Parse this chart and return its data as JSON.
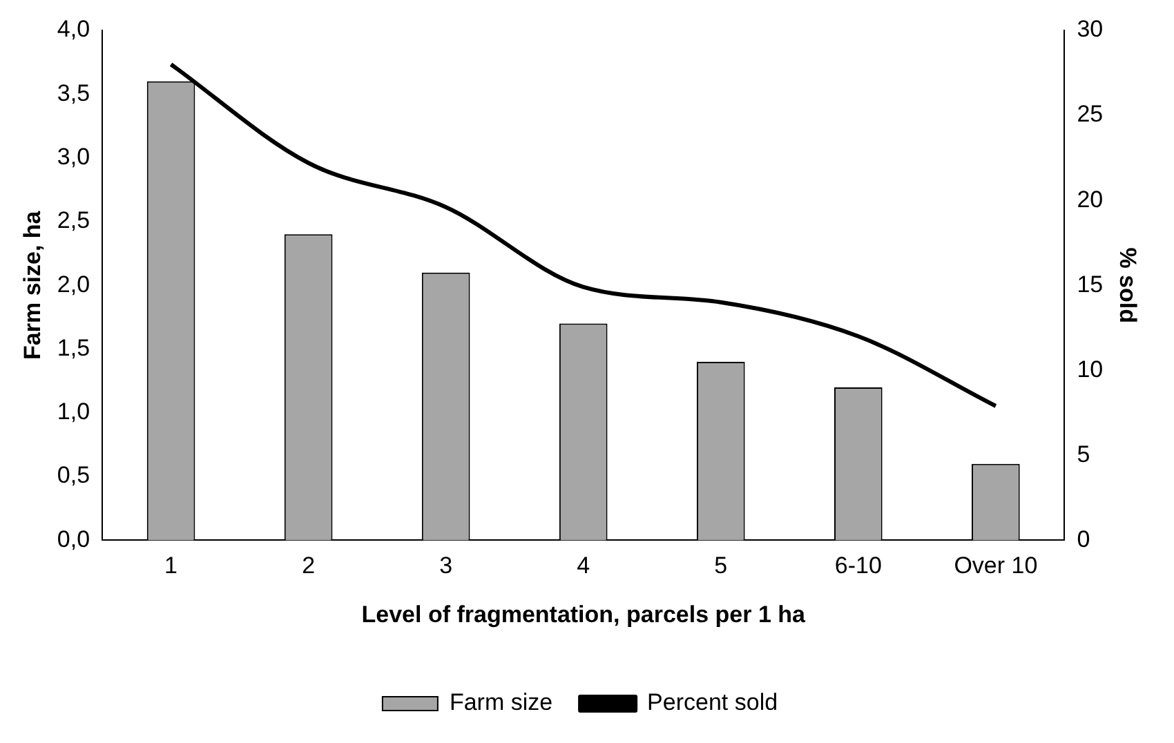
{
  "chart_data": {
    "type": "bar",
    "xlabel": "Level of fragmentation, parcels per 1 ha",
    "ylabel": "Farm size, ha",
    "y2label": "% sold",
    "categories": [
      "1",
      "2",
      "3",
      "4",
      "5",
      "6-10",
      "Over 10"
    ],
    "series": [
      {
        "name": "Farm size",
        "color": "#a6a6a6",
        "values": [
          3.6,
          2.4,
          2.1,
          1.7,
          1.4,
          1.2,
          0.6
        ]
      },
      {
        "name": "Percent sold",
        "type": "line",
        "axis": "y2",
        "color": "#000000",
        "values": [
          28,
          22.2,
          19.6,
          14.9,
          14,
          12,
          7.9
        ]
      }
    ],
    "ylim": [
      0,
      4
    ],
    "yticks": [
      {
        "value": 0,
        "label": "0,0"
      },
      {
        "value": 0.5,
        "label": "0,5"
      },
      {
        "value": 1,
        "label": "1,0"
      },
      {
        "value": 1.5,
        "label": "1,5"
      },
      {
        "value": 2,
        "label": "2,0"
      },
      {
        "value": 2.5,
        "label": "2,5"
      },
      {
        "value": 3,
        "label": "3,0"
      },
      {
        "value": 3.5,
        "label": "3,5"
      },
      {
        "value": 4,
        "label": "4,0"
      }
    ],
    "y2lim": [
      0,
      30
    ],
    "y2ticks": [
      0,
      5,
      10,
      15,
      20,
      25,
      30
    ],
    "grid": false,
    "legend": "bottom",
    "marker": "none",
    "line_style": "solid"
  }
}
